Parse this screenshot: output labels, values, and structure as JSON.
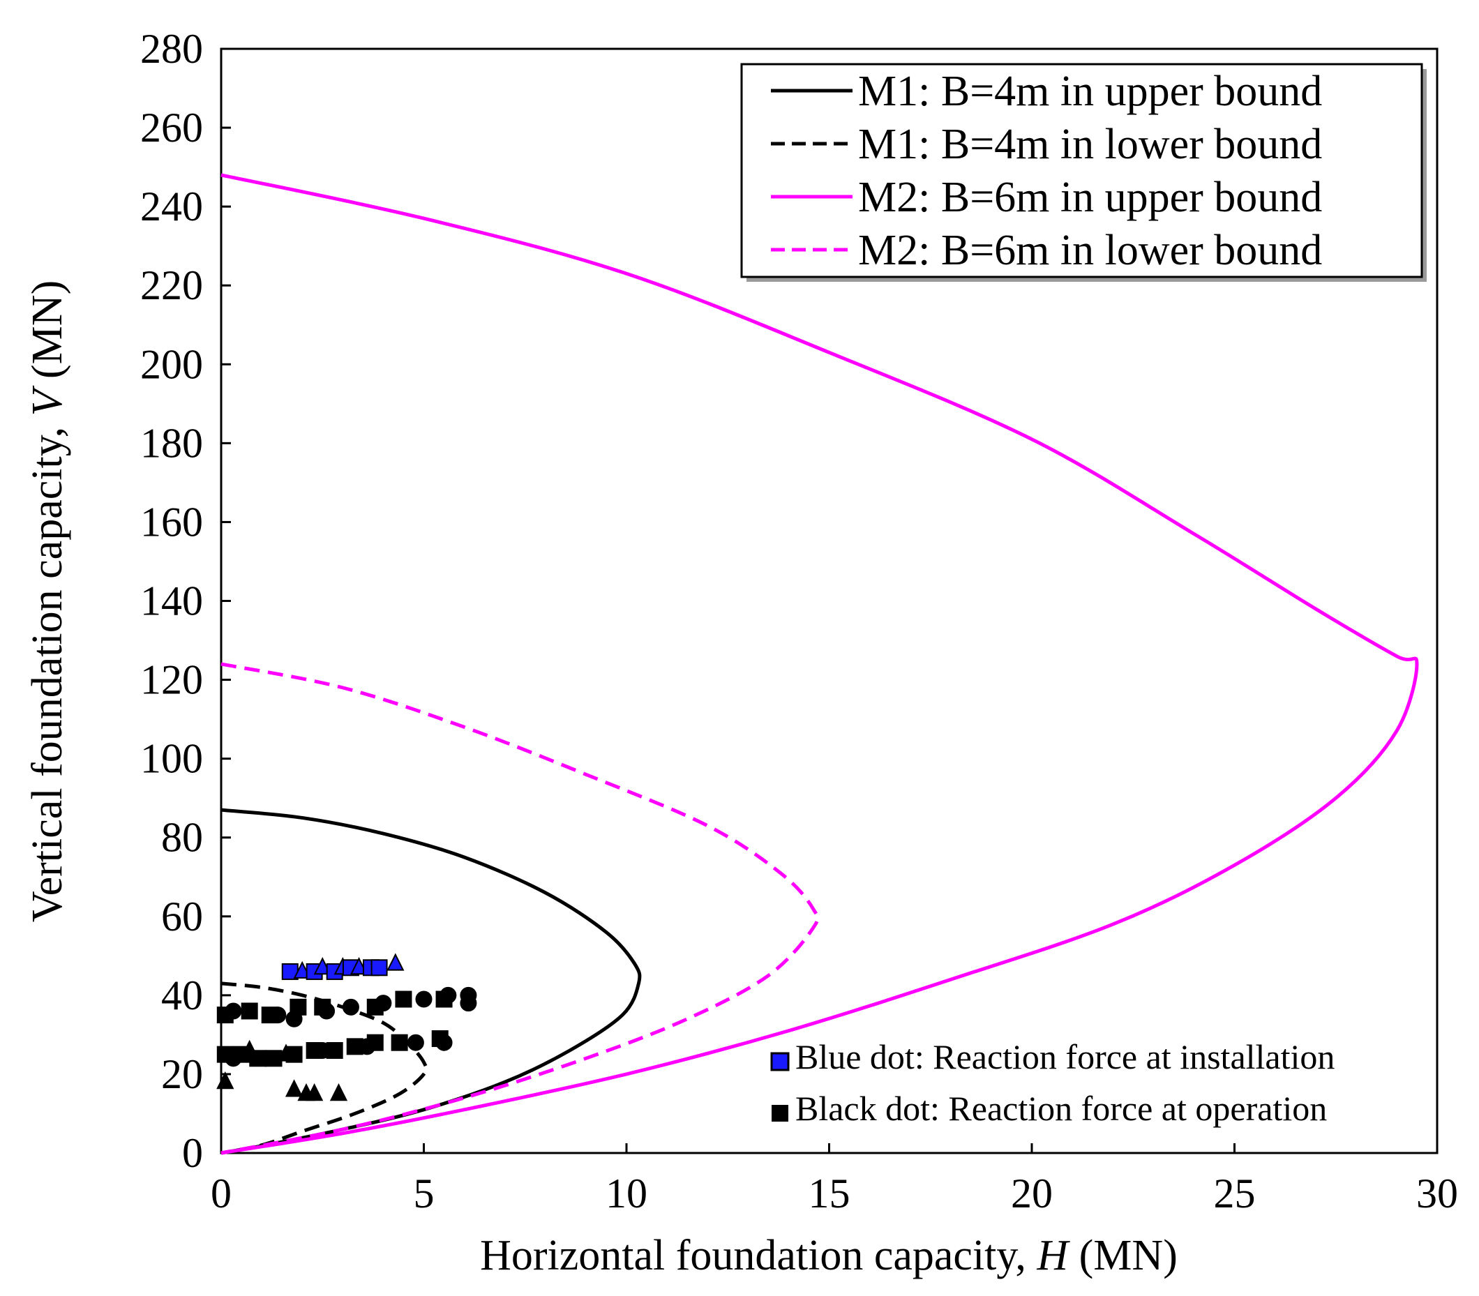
{
  "chart_data": {
    "type": "line",
    "title": "",
    "xlabel": "Horizontal foundation capacity,",
    "xlabel_var": "H",
    "xlabel_unit": "(MN)",
    "ylabel": "Vertical foundation capacity,",
    "ylabel_var": "V",
    "ylabel_unit": "(MN)",
    "xlim": [
      0,
      30
    ],
    "ylim": [
      0,
      280
    ],
    "xticks": [
      0,
      5,
      10,
      15,
      20,
      25,
      30
    ],
    "yticks": [
      0,
      20,
      40,
      60,
      80,
      100,
      120,
      140,
      160,
      180,
      200,
      220,
      240,
      260,
      280
    ],
    "grid": false,
    "legend_position": "top-right",
    "series": [
      {
        "name": "M1: B=4m in upper bound",
        "color": "#000000",
        "dash": "solid",
        "points": [
          [
            0,
            87
          ],
          [
            2,
            85
          ],
          [
            4,
            81
          ],
          [
            6,
            75
          ],
          [
            8,
            66
          ],
          [
            9.5,
            56
          ],
          [
            10.2,
            48
          ],
          [
            10.3,
            43
          ],
          [
            9.9,
            35
          ],
          [
            8.6,
            26
          ],
          [
            7,
            18
          ],
          [
            5,
            11
          ],
          [
            3,
            6
          ],
          [
            1,
            1.8
          ],
          [
            0,
            0
          ]
        ]
      },
      {
        "name": "M1: B=4m in lower bound",
        "color": "#000000",
        "dash": "dashed",
        "points": [
          [
            0,
            43
          ],
          [
            1,
            42
          ],
          [
            2,
            40
          ],
          [
            3,
            37
          ],
          [
            4,
            33
          ],
          [
            4.6,
            28
          ],
          [
            5,
            23
          ],
          [
            5,
            20
          ],
          [
            4.4,
            15
          ],
          [
            3.3,
            10
          ],
          [
            2,
            5.5
          ],
          [
            1,
            2
          ],
          [
            0,
            0
          ]
        ]
      },
      {
        "name": "M2: B=6m in upper bound",
        "color": "#ff00ff",
        "dash": "solid",
        "points": [
          [
            0,
            248
          ],
          [
            5,
            237
          ],
          [
            10,
            223
          ],
          [
            15,
            203
          ],
          [
            20,
            181
          ],
          [
            24,
            157
          ],
          [
            27,
            138
          ],
          [
            29,
            126
          ],
          [
            29.5,
            124
          ],
          [
            29,
            107
          ],
          [
            27.5,
            90
          ],
          [
            25,
            73
          ],
          [
            22,
            58
          ],
          [
            18,
            44
          ],
          [
            14,
            31
          ],
          [
            10,
            20
          ],
          [
            6,
            11
          ],
          [
            3,
            5
          ],
          [
            0,
            0
          ]
        ]
      },
      {
        "name": "M2: B=6m in lower bound",
        "color": "#ff00ff",
        "dash": "dashed",
        "points": [
          [
            0,
            124
          ],
          [
            3,
            118
          ],
          [
            6,
            108
          ],
          [
            9,
            96
          ],
          [
            12,
            83
          ],
          [
            13.8,
            71
          ],
          [
            14.6,
            62
          ],
          [
            14.6,
            57
          ],
          [
            13.5,
            45
          ],
          [
            11.5,
            34
          ],
          [
            9,
            24
          ],
          [
            6,
            14
          ],
          [
            3,
            6
          ],
          [
            0,
            0
          ]
        ]
      }
    ],
    "scatter": [
      {
        "name": "Blue dot: Reaction force at installation",
        "color": "#1a1aff",
        "points": [
          {
            "x": 1.7,
            "y": 46,
            "m": "square"
          },
          {
            "x": 2.0,
            "y": 46,
            "m": "triangle"
          },
          {
            "x": 2.3,
            "y": 46,
            "m": "square"
          },
          {
            "x": 2.5,
            "y": 47,
            "m": "triangle"
          },
          {
            "x": 2.8,
            "y": 46,
            "m": "square"
          },
          {
            "x": 3.0,
            "y": 47,
            "m": "triangle"
          },
          {
            "x": 3.2,
            "y": 47,
            "m": "square"
          },
          {
            "x": 3.4,
            "y": 47,
            "m": "triangle"
          },
          {
            "x": 3.7,
            "y": 47,
            "m": "square"
          },
          {
            "x": 3.9,
            "y": 47,
            "m": "square"
          },
          {
            "x": 4.3,
            "y": 48,
            "m": "triangle"
          }
        ]
      },
      {
        "name": "Black dot: Reaction force at operation",
        "color": "#000000",
        "points": [
          {
            "x": 0.1,
            "y": 18,
            "m": "triangle"
          },
          {
            "x": 0.1,
            "y": 25,
            "m": "square"
          },
          {
            "x": 0.3,
            "y": 24,
            "m": "circle"
          },
          {
            "x": 0.5,
            "y": 25,
            "m": "square"
          },
          {
            "x": 0.7,
            "y": 26,
            "m": "triangle"
          },
          {
            "x": 0.9,
            "y": 24,
            "m": "square"
          },
          {
            "x": 1.1,
            "y": 24,
            "m": "circle"
          },
          {
            "x": 1.3,
            "y": 24,
            "m": "square"
          },
          {
            "x": 1.6,
            "y": 25,
            "m": "triangle"
          },
          {
            "x": 1.8,
            "y": 25,
            "m": "square"
          },
          {
            "x": 2.3,
            "y": 26,
            "m": "square"
          },
          {
            "x": 2.5,
            "y": 26,
            "m": "circle"
          },
          {
            "x": 2.8,
            "y": 26,
            "m": "square"
          },
          {
            "x": 3.3,
            "y": 27,
            "m": "square"
          },
          {
            "x": 3.6,
            "y": 27,
            "m": "circle"
          },
          {
            "x": 3.8,
            "y": 28,
            "m": "square"
          },
          {
            "x": 4.4,
            "y": 28,
            "m": "square"
          },
          {
            "x": 4.8,
            "y": 28,
            "m": "circle"
          },
          {
            "x": 5.4,
            "y": 29,
            "m": "square"
          },
          {
            "x": 5.5,
            "y": 28,
            "m": "circle"
          },
          {
            "x": 0.1,
            "y": 35,
            "m": "square"
          },
          {
            "x": 0.3,
            "y": 36,
            "m": "circle"
          },
          {
            "x": 0.7,
            "y": 36,
            "m": "square"
          },
          {
            "x": 1.2,
            "y": 35,
            "m": "square"
          },
          {
            "x": 1.4,
            "y": 35,
            "m": "circle"
          },
          {
            "x": 1.8,
            "y": 34,
            "m": "circle"
          },
          {
            "x": 1.9,
            "y": 37,
            "m": "square"
          },
          {
            "x": 2.5,
            "y": 37,
            "m": "square"
          },
          {
            "x": 2.6,
            "y": 36,
            "m": "circle"
          },
          {
            "x": 3.2,
            "y": 37,
            "m": "circle"
          },
          {
            "x": 3.8,
            "y": 37,
            "m": "square"
          },
          {
            "x": 4.0,
            "y": 38,
            "m": "circle"
          },
          {
            "x": 4.5,
            "y": 39,
            "m": "square"
          },
          {
            "x": 5.0,
            "y": 39,
            "m": "circle"
          },
          {
            "x": 5.5,
            "y": 39,
            "m": "square"
          },
          {
            "x": 5.6,
            "y": 40,
            "m": "circle"
          },
          {
            "x": 6.1,
            "y": 40,
            "m": "circle"
          },
          {
            "x": 6.1,
            "y": 38,
            "m": "circle"
          },
          {
            "x": 1.8,
            "y": 16,
            "m": "triangle"
          },
          {
            "x": 2.1,
            "y": 15,
            "m": "triangle"
          },
          {
            "x": 2.3,
            "y": 15,
            "m": "triangle"
          },
          {
            "x": 2.9,
            "y": 15,
            "m": "triangle"
          }
        ]
      }
    ],
    "annotations": [
      {
        "text": "Blue dot: Reaction force at installation",
        "color": "#1a1aff"
      },
      {
        "text": "Black dot: Reaction force at operation",
        "color": "#000000"
      }
    ]
  }
}
